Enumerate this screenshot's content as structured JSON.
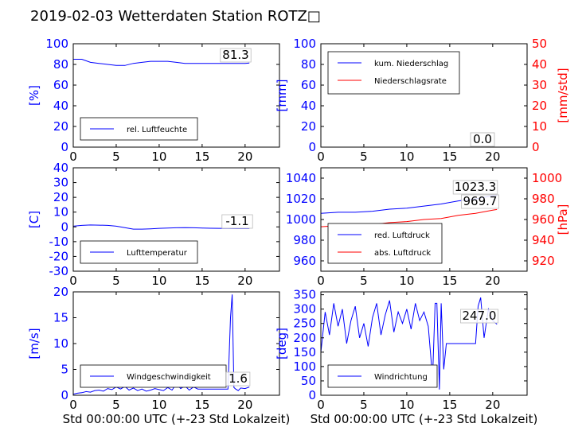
{
  "figure": {
    "title": "2019-02-03 Wetterdaten Station ROTZ□"
  },
  "colors": {
    "blue": "#0000ff",
    "red": "#ff0000",
    "black": "#000000"
  },
  "chart_data": [
    {
      "id": "humidity",
      "type": "line",
      "xlim": [
        0,
        24
      ],
      "xticks": [
        0,
        5,
        10,
        15,
        20
      ],
      "xlabel": "",
      "y1": {
        "lim": [
          0,
          100
        ],
        "ticks": [
          0,
          20,
          40,
          60,
          80,
          100
        ],
        "label": "[%]",
        "color": "blue"
      },
      "series": [
        {
          "name": "rel. Luftfeuchte",
          "axis": "y1",
          "color": "blue",
          "x": [
            0,
            1,
            2,
            3,
            4,
            5,
            6,
            7,
            8,
            9,
            10,
            11,
            12,
            13,
            14,
            15,
            16,
            17,
            18,
            19,
            20,
            20.5
          ],
          "y": [
            85,
            85,
            82,
            81,
            80,
            79,
            79,
            81,
            82,
            83,
            83,
            83,
            82,
            81,
            81,
            81,
            81,
            81,
            81,
            81,
            81,
            81.3
          ]
        }
      ],
      "legend": {
        "position": "lower-left"
      },
      "annotations": [
        {
          "text": "81.3"
        }
      ]
    },
    {
      "id": "precipitation",
      "type": "line",
      "xlim": [
        0,
        24
      ],
      "xticks": [
        0,
        5,
        10,
        15,
        20
      ],
      "xlabel": "",
      "y1": {
        "lim": [
          0,
          100
        ],
        "ticks": [
          0,
          20,
          40,
          60,
          80,
          100
        ],
        "label": "[mm]",
        "color": "blue"
      },
      "y2": {
        "lim": [
          0,
          50
        ],
        "ticks": [
          0,
          10,
          20,
          30,
          40,
          50
        ],
        "label": "[mm/std]",
        "color": "red"
      },
      "series": [
        {
          "name": "kum. Niederschlag",
          "axis": "y1",
          "color": "blue",
          "x": [
            0,
            20.5
          ],
          "y": [
            0,
            0
          ]
        },
        {
          "name": "Niederschlagsrate",
          "axis": "y2",
          "color": "red",
          "x": [
            0,
            20.5
          ],
          "y": [
            0,
            0
          ]
        }
      ],
      "legend": {
        "position": "upper-left"
      },
      "annotations": [
        {
          "text": "0.0"
        },
        {
          "text": "0.0"
        }
      ]
    },
    {
      "id": "temperature",
      "type": "line",
      "xlim": [
        0,
        24
      ],
      "xticks": [
        0,
        5,
        10,
        15,
        20
      ],
      "xlabel": "",
      "y1": {
        "lim": [
          -30,
          40
        ],
        "ticks": [
          -30,
          -20,
          -10,
          0,
          10,
          20,
          30,
          40
        ],
        "label": "[C]",
        "color": "blue"
      },
      "series": [
        {
          "name": "Lufttemperatur",
          "axis": "y1",
          "color": "blue",
          "x": [
            0,
            1,
            2,
            3,
            4,
            5,
            6,
            7,
            8,
            9,
            10,
            11,
            12,
            13,
            14,
            15,
            16,
            17,
            18,
            19,
            20,
            20.5
          ],
          "y": [
            0.5,
            1.0,
            1.3,
            1.2,
            1.0,
            0.5,
            -0.5,
            -1.5,
            -1.5,
            -1.3,
            -1.0,
            -0.8,
            -0.6,
            -0.5,
            -0.6,
            -0.8,
            -0.9,
            -1.0,
            -1.0,
            -1.1,
            -1.1,
            -1.1
          ]
        }
      ],
      "legend": {
        "position": "lower-left"
      },
      "annotations": [
        {
          "text": "-1.1"
        }
      ]
    },
    {
      "id": "pressure",
      "type": "line",
      "xlim": [
        0,
        24
      ],
      "xticks": [
        0,
        5,
        10,
        15,
        20
      ],
      "xlabel": "",
      "y1": {
        "lim": [
          950,
          1050
        ],
        "ticks": [
          960,
          980,
          1000,
          1020,
          1040
        ],
        "label": "",
        "color": "blue"
      },
      "y2": {
        "lim": [
          910,
          1010
        ],
        "ticks": [
          920,
          940,
          960,
          980,
          1000
        ],
        "label": "[hPa]",
        "color": "red"
      },
      "series": [
        {
          "name": "red. Luftdruck",
          "axis": "y1",
          "color": "blue",
          "x": [
            0,
            2,
            4,
            6,
            8,
            10,
            12,
            14,
            16,
            18,
            20,
            20.5
          ],
          "y": [
            1006,
            1007,
            1007,
            1008,
            1010,
            1011,
            1013,
            1015,
            1018,
            1020,
            1023,
            1023.3
          ]
        },
        {
          "name": "abs. Luftdruck",
          "axis": "y2",
          "color": "red",
          "x": [
            0,
            2,
            4,
            6,
            8,
            10,
            12,
            14,
            16,
            18,
            20,
            20.5
          ],
          "y": [
            953,
            954,
            954,
            955,
            957,
            958,
            960,
            961,
            964,
            966,
            969,
            969.7
          ]
        }
      ],
      "legend": {
        "position": "lower-left"
      },
      "annotations": [
        {
          "text": "1023.3"
        },
        {
          "text": "969.7"
        }
      ]
    },
    {
      "id": "windspeed",
      "type": "line",
      "xlim": [
        0,
        24
      ],
      "xticks": [
        0,
        5,
        10,
        15,
        20
      ],
      "xlabel": "Std 00:00:00 UTC (+-23 Std Lokalzeit)",
      "y1": {
        "lim": [
          0,
          20
        ],
        "ticks": [
          0,
          5,
          10,
          15,
          20
        ],
        "label": "[m/s]",
        "color": "blue"
      },
      "series": [
        {
          "name": "Windgeschwindigkeit",
          "axis": "y1",
          "color": "blue",
          "x": [
            0,
            0.5,
            1,
            1.5,
            2,
            2.5,
            3,
            3.5,
            4,
            4.5,
            5,
            5.5,
            6,
            6.5,
            7,
            7.5,
            8,
            8.5,
            9,
            9.5,
            10,
            10.5,
            11,
            11.5,
            12,
            12.5,
            13,
            13.5,
            14,
            14.5,
            15,
            16,
            17,
            18,
            18.3,
            18.5,
            18.7,
            18.9,
            19.2,
            19.5,
            20,
            20.5
          ],
          "y": [
            0.2,
            0.4,
            0.5,
            0.7,
            0.6,
            0.9,
            1.0,
            0.8,
            1.3,
            1.1,
            1.6,
            1.2,
            1.7,
            1.0,
            1.4,
            0.9,
            1.2,
            0.8,
            1.0,
            1.3,
            1.1,
            0.9,
            1.5,
            1.0,
            2.2,
            1.3,
            1.8,
            1.0,
            1.6,
            1.2,
            1.2,
            1.2,
            1.2,
            1.2,
            15,
            19.5,
            1.5,
            1.2,
            0.9,
            1.4,
            1.3,
            1.6
          ]
        }
      ],
      "legend": {
        "position": "lower-left"
      },
      "annotations": [
        {
          "text": "1.6"
        }
      ]
    },
    {
      "id": "winddir",
      "type": "line",
      "xlim": [
        0,
        24
      ],
      "xticks": [
        0,
        5,
        10,
        15,
        20
      ],
      "xlabel": "Std 00:00:00 UTC (+-23 Std Lokalzeit)",
      "y1": {
        "lim": [
          0,
          360
        ],
        "ticks": [
          0,
          50,
          100,
          150,
          200,
          250,
          300,
          350
        ],
        "label": "[deg]",
        "color": "blue"
      },
      "series": [
        {
          "name": "Windrichtung",
          "axis": "y1",
          "color": "blue",
          "x": [
            0,
            0.5,
            1,
            1.5,
            2,
            2.5,
            3,
            3.5,
            4,
            4.5,
            5,
            5.5,
            6,
            6.5,
            7,
            7.5,
            8,
            8.5,
            9,
            9.5,
            10,
            10.5,
            11,
            11.5,
            12,
            12.5,
            13,
            13.3,
            13.5,
            13.8,
            14,
            14.3,
            14.6,
            15,
            16,
            17,
            18,
            18.3,
            18.6,
            19,
            19.5,
            20,
            20.5
          ],
          "y": [
            150,
            290,
            210,
            320,
            240,
            300,
            180,
            260,
            310,
            200,
            250,
            170,
            270,
            320,
            210,
            280,
            330,
            220,
            290,
            250,
            300,
            230,
            320,
            260,
            290,
            240,
            60,
            320,
            320,
            20,
            320,
            90,
            180,
            180,
            180,
            180,
            180,
            310,
            340,
            200,
            300,
            260,
            247.0
          ]
        }
      ],
      "legend": {
        "position": "lower-left"
      },
      "annotations": [
        {
          "text": "247.0"
        }
      ]
    }
  ]
}
